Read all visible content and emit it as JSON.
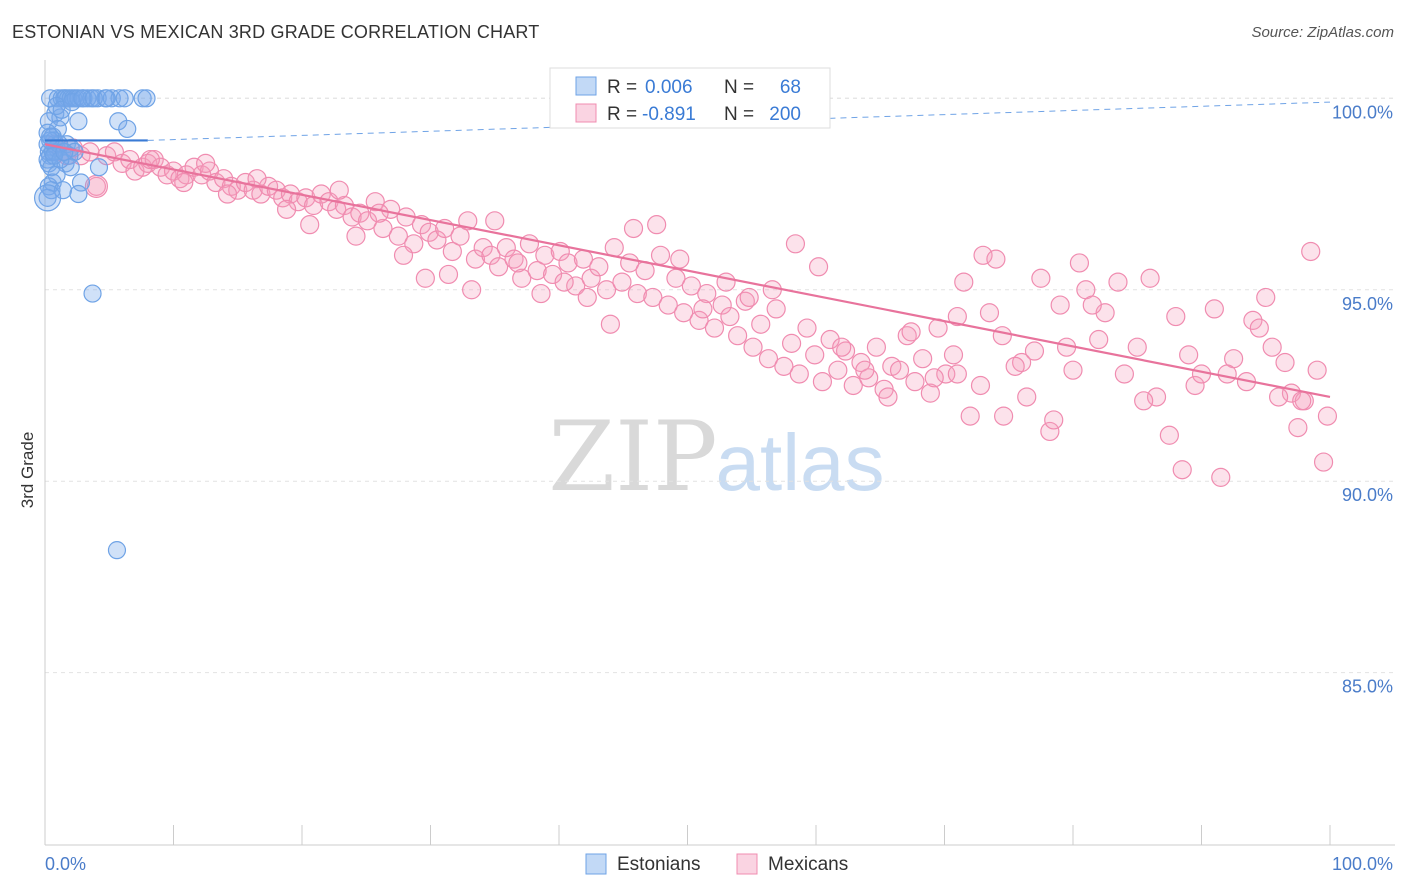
{
  "title": "ESTONIAN VS MEXICAN 3RD GRADE CORRELATION CHART",
  "source": "Source: ZipAtlas.com",
  "watermark": {
    "zip": "ZIP",
    "atlas": "atlas"
  },
  "colors": {
    "estonian": "#6fa3e6",
    "estonian_fill": "rgba(120,170,235,0.35)",
    "estonian_line": "#3a7bd5",
    "mexican": "#f08cb0",
    "mexican_fill": "rgba(244,160,190,0.30)",
    "mexican_line": "#e8739c",
    "tick_label": "#4a7cc9",
    "grid": "#e2e2e2"
  },
  "legend": {
    "r_label": "R =",
    "n_label": "N =",
    "rows": [
      {
        "r": "0.006",
        "n": "68"
      },
      {
        "r": "-0.891",
        "n": "200"
      }
    ]
  },
  "bottom_legend": [
    "Estonians",
    "Mexicans"
  ],
  "chart_data": {
    "type": "scatter",
    "title": "ESTONIAN VS MEXICAN 3RD GRADE CORRELATION CHART",
    "xlabel": "",
    "ylabel": "3rd Grade",
    "xlim": [
      0,
      100
    ],
    "ylim": [
      80.5,
      101.0
    ],
    "x_tick_labels": [
      "0.0%",
      "100.0%"
    ],
    "y_ticks": [
      85.0,
      90.0,
      95.0,
      100.0
    ],
    "y_tick_labels": [
      "85.0%",
      "90.0%",
      "95.0%",
      "100.0%"
    ],
    "grid": true,
    "legend_position": "top-center",
    "series": [
      {
        "name": "Estonians",
        "r": 0.006,
        "n": 68,
        "trend": {
          "x": [
            0,
            8
          ],
          "y": [
            98.9,
            98.9
          ]
        },
        "trend_dashed": {
          "x": [
            8,
            100
          ],
          "y": [
            98.9,
            99.9
          ]
        },
        "points": [
          [
            0.4,
            100.0
          ],
          [
            1.0,
            100.0
          ],
          [
            1.3,
            100.0
          ],
          [
            1.5,
            100.0
          ],
          [
            1.6,
            100.0
          ],
          [
            1.8,
            100.0
          ],
          [
            2.0,
            100.0
          ],
          [
            2.2,
            100.0
          ],
          [
            2.4,
            100.0
          ],
          [
            2.6,
            100.0
          ],
          [
            3.0,
            100.0
          ],
          [
            3.3,
            100.0
          ],
          [
            3.6,
            100.0
          ],
          [
            4.1,
            100.0
          ],
          [
            4.7,
            100.0
          ],
          [
            5.2,
            100.0
          ],
          [
            5.8,
            100.0
          ],
          [
            6.2,
            100.0
          ],
          [
            7.6,
            100.0
          ],
          [
            7.9,
            100.0
          ],
          [
            0.8,
            99.6
          ],
          [
            1.2,
            99.5
          ],
          [
            0.3,
            99.4
          ],
          [
            2.6,
            99.4
          ],
          [
            1.0,
            99.2
          ],
          [
            5.7,
            99.4
          ],
          [
            6.4,
            99.2
          ],
          [
            0.2,
            99.1
          ],
          [
            0.6,
            99.0
          ],
          [
            0.7,
            98.9
          ],
          [
            0.2,
            98.8
          ],
          [
            0.9,
            98.7
          ],
          [
            1.7,
            98.8
          ],
          [
            0.3,
            98.6
          ],
          [
            2.0,
            98.7
          ],
          [
            0.4,
            98.5
          ],
          [
            0.8,
            98.6
          ],
          [
            2.3,
            98.6
          ],
          [
            0.3,
            98.3
          ],
          [
            1.6,
            98.3
          ],
          [
            0.2,
            98.4
          ],
          [
            1.9,
            98.5
          ],
          [
            0.5,
            98.2
          ],
          [
            2.0,
            98.2
          ],
          [
            0.9,
            98.0
          ],
          [
            4.2,
            98.2
          ],
          [
            0.6,
            97.8
          ],
          [
            2.8,
            97.8
          ],
          [
            0.3,
            97.7
          ],
          [
            0.5,
            97.6
          ],
          [
            1.4,
            97.6
          ],
          [
            2.6,
            97.5
          ],
          [
            0.2,
            97.4
          ],
          [
            0.6,
            98.6
          ],
          [
            1.1,
            98.8
          ],
          [
            0.4,
            98.9
          ],
          [
            1.2,
            98.4
          ],
          [
            0.7,
            98.5
          ],
          [
            0.4,
            99.0
          ],
          [
            1.5,
            98.6
          ],
          [
            0.9,
            99.8
          ],
          [
            1.3,
            99.7
          ],
          [
            2.1,
            99.9
          ],
          [
            2.9,
            100.0
          ],
          [
            3.8,
            100.0
          ],
          [
            4.8,
            100.0
          ],
          [
            3.7,
            94.9
          ],
          [
            5.6,
            88.2
          ]
        ]
      },
      {
        "name": "Mexicans",
        "r": -0.891,
        "n": 200,
        "trend": {
          "x": [
            0,
            100
          ],
          "y": [
            98.8,
            92.2
          ]
        },
        "points": [
          [
            0.8,
            98.8
          ],
          [
            1.3,
            98.6
          ],
          [
            1.7,
            98.5
          ],
          [
            2.2,
            98.7
          ],
          [
            2.8,
            98.5
          ],
          [
            3.5,
            98.6
          ],
          [
            4.0,
            97.7
          ],
          [
            4.8,
            98.5
          ],
          [
            5.4,
            98.6
          ],
          [
            6.0,
            98.3
          ],
          [
            6.6,
            98.4
          ],
          [
            7.0,
            98.1
          ],
          [
            7.6,
            98.2
          ],
          [
            8.0,
            98.3
          ],
          [
            8.5,
            98.4
          ],
          [
            9.0,
            98.2
          ],
          [
            9.5,
            98.0
          ],
          [
            10.0,
            98.1
          ],
          [
            10.5,
            97.9
          ],
          [
            11.0,
            98.0
          ],
          [
            11.6,
            98.2
          ],
          [
            12.2,
            98.0
          ],
          [
            12.8,
            98.1
          ],
          [
            13.3,
            97.8
          ],
          [
            13.9,
            97.9
          ],
          [
            14.5,
            97.7
          ],
          [
            15.0,
            97.6
          ],
          [
            15.6,
            97.8
          ],
          [
            16.2,
            97.6
          ],
          [
            16.8,
            97.5
          ],
          [
            17.4,
            97.7
          ],
          [
            18.0,
            97.6
          ],
          [
            18.5,
            97.4
          ],
          [
            19.1,
            97.5
          ],
          [
            19.7,
            97.3
          ],
          [
            20.3,
            97.4
          ],
          [
            20.9,
            97.2
          ],
          [
            21.5,
            97.5
          ],
          [
            22.1,
            97.3
          ],
          [
            22.7,
            97.1
          ],
          [
            23.3,
            97.2
          ],
          [
            23.9,
            96.9
          ],
          [
            24.5,
            97.0
          ],
          [
            25.1,
            96.8
          ],
          [
            25.7,
            97.3
          ],
          [
            26.3,
            96.6
          ],
          [
            26.9,
            97.1
          ],
          [
            27.5,
            96.4
          ],
          [
            28.1,
            96.9
          ],
          [
            28.7,
            96.2
          ],
          [
            29.3,
            96.7
          ],
          [
            29.9,
            96.5
          ],
          [
            30.5,
            96.3
          ],
          [
            31.1,
            96.6
          ],
          [
            31.7,
            96.0
          ],
          [
            32.3,
            96.4
          ],
          [
            32.9,
            96.8
          ],
          [
            33.5,
            95.8
          ],
          [
            34.1,
            96.1
          ],
          [
            34.7,
            95.9
          ],
          [
            35.3,
            95.6
          ],
          [
            35.9,
            96.1
          ],
          [
            36.5,
            95.8
          ],
          [
            37.1,
            95.3
          ],
          [
            37.7,
            96.2
          ],
          [
            38.3,
            95.5
          ],
          [
            38.9,
            95.9
          ],
          [
            39.5,
            95.4
          ],
          [
            40.1,
            96.0
          ],
          [
            40.7,
            95.7
          ],
          [
            41.3,
            95.1
          ],
          [
            41.9,
            95.8
          ],
          [
            42.5,
            95.3
          ],
          [
            43.1,
            95.6
          ],
          [
            43.7,
            95.0
          ],
          [
            44.3,
            96.1
          ],
          [
            44.9,
            95.2
          ],
          [
            45.5,
            95.7
          ],
          [
            46.1,
            94.9
          ],
          [
            46.7,
            95.5
          ],
          [
            47.3,
            94.8
          ],
          [
            47.9,
            95.9
          ],
          [
            48.5,
            94.6
          ],
          [
            49.1,
            95.3
          ],
          [
            49.7,
            94.4
          ],
          [
            50.3,
            95.1
          ],
          [
            50.9,
            94.2
          ],
          [
            51.5,
            94.9
          ],
          [
            52.1,
            94.0
          ],
          [
            52.7,
            94.6
          ],
          [
            53.3,
            94.3
          ],
          [
            53.9,
            93.8
          ],
          [
            54.5,
            94.7
          ],
          [
            55.1,
            93.5
          ],
          [
            55.7,
            94.1
          ],
          [
            56.3,
            93.2
          ],
          [
            56.9,
            94.5
          ],
          [
            57.5,
            93.0
          ],
          [
            58.1,
            93.6
          ],
          [
            58.7,
            92.8
          ],
          [
            59.3,
            94.0
          ],
          [
            59.9,
            93.3
          ],
          [
            60.5,
            92.6
          ],
          [
            61.1,
            93.7
          ],
          [
            61.7,
            92.9
          ],
          [
            62.3,
            93.4
          ],
          [
            62.9,
            92.5
          ],
          [
            63.5,
            93.1
          ],
          [
            64.1,
            92.7
          ],
          [
            64.7,
            93.5
          ],
          [
            65.3,
            92.4
          ],
          [
            65.9,
            93.0
          ],
          [
            66.5,
            92.9
          ],
          [
            67.1,
            93.8
          ],
          [
            67.7,
            92.6
          ],
          [
            68.3,
            93.2
          ],
          [
            68.9,
            92.3
          ],
          [
            69.5,
            94.0
          ],
          [
            70.1,
            92.8
          ],
          [
            70.7,
            93.3
          ],
          [
            8.2,
            98.4
          ],
          [
            10.8,
            97.8
          ],
          [
            12.5,
            98.3
          ],
          [
            14.2,
            97.5
          ],
          [
            16.5,
            97.9
          ],
          [
            18.8,
            97.1
          ],
          [
            20.6,
            96.7
          ],
          [
            22.9,
            97.6
          ],
          [
            24.2,
            96.4
          ],
          [
            26.0,
            97.0
          ],
          [
            27.9,
            95.9
          ],
          [
            29.6,
            95.3
          ],
          [
            31.4,
            95.4
          ],
          [
            33.2,
            95.0
          ],
          [
            35.0,
            96.8
          ],
          [
            36.8,
            95.7
          ],
          [
            38.6,
            94.9
          ],
          [
            40.4,
            95.2
          ],
          [
            42.2,
            94.8
          ],
          [
            44.0,
            94.1
          ],
          [
            45.8,
            96.6
          ],
          [
            47.6,
            96.7
          ],
          [
            49.4,
            95.8
          ],
          [
            51.2,
            94.5
          ],
          [
            53.0,
            95.2
          ],
          [
            54.8,
            94.8
          ],
          [
            56.6,
            95.0
          ],
          [
            58.4,
            96.2
          ],
          [
            60.2,
            95.6
          ],
          [
            62.0,
            93.5
          ],
          [
            63.8,
            92.9
          ],
          [
            65.6,
            92.2
          ],
          [
            67.4,
            93.9
          ],
          [
            69.2,
            92.7
          ],
          [
            71.0,
            94.3
          ],
          [
            72.8,
            92.5
          ],
          [
            74.6,
            91.7
          ],
          [
            76.4,
            92.2
          ],
          [
            78.2,
            91.3
          ],
          [
            80.0,
            92.9
          ],
          [
            71.5,
            95.2
          ],
          [
            73.0,
            95.9
          ],
          [
            74.5,
            93.8
          ],
          [
            76.0,
            93.1
          ],
          [
            77.5,
            95.3
          ],
          [
            79.0,
            94.6
          ],
          [
            80.5,
            95.7
          ],
          [
            82.0,
            93.7
          ],
          [
            83.5,
            95.2
          ],
          [
            85.0,
            93.5
          ],
          [
            86.5,
            92.2
          ],
          [
            88.0,
            94.3
          ],
          [
            89.5,
            92.5
          ],
          [
            91.0,
            94.5
          ],
          [
            92.5,
            93.2
          ],
          [
            94.0,
            94.2
          ],
          [
            95.5,
            93.5
          ],
          [
            97.0,
            92.3
          ],
          [
            98.5,
            96.0
          ],
          [
            99.8,
            91.7
          ],
          [
            72.0,
            91.7
          ],
          [
            75.5,
            93.0
          ],
          [
            79.5,
            93.5
          ],
          [
            82.5,
            94.4
          ],
          [
            86.0,
            95.3
          ],
          [
            89.0,
            93.3
          ],
          [
            92.0,
            92.8
          ],
          [
            95.0,
            94.8
          ],
          [
            97.5,
            91.4
          ],
          [
            99.5,
            90.5
          ],
          [
            73.5,
            94.4
          ],
          [
            77.0,
            93.4
          ],
          [
            81.0,
            95.0
          ],
          [
            84.0,
            92.8
          ],
          [
            87.5,
            91.2
          ],
          [
            90.0,
            92.8
          ],
          [
            93.5,
            92.6
          ],
          [
            96.5,
            93.1
          ],
          [
            98.0,
            92.1
          ],
          [
            99.0,
            92.9
          ],
          [
            71.0,
            92.8
          ],
          [
            74.0,
            95.8
          ],
          [
            78.5,
            91.6
          ],
          [
            81.5,
            94.6
          ],
          [
            85.5,
            92.1
          ],
          [
            88.5,
            90.3
          ],
          [
            91.5,
            90.1
          ],
          [
            94.5,
            94.0
          ],
          [
            96.0,
            92.2
          ],
          [
            97.8,
            92.1
          ]
        ]
      }
    ]
  }
}
